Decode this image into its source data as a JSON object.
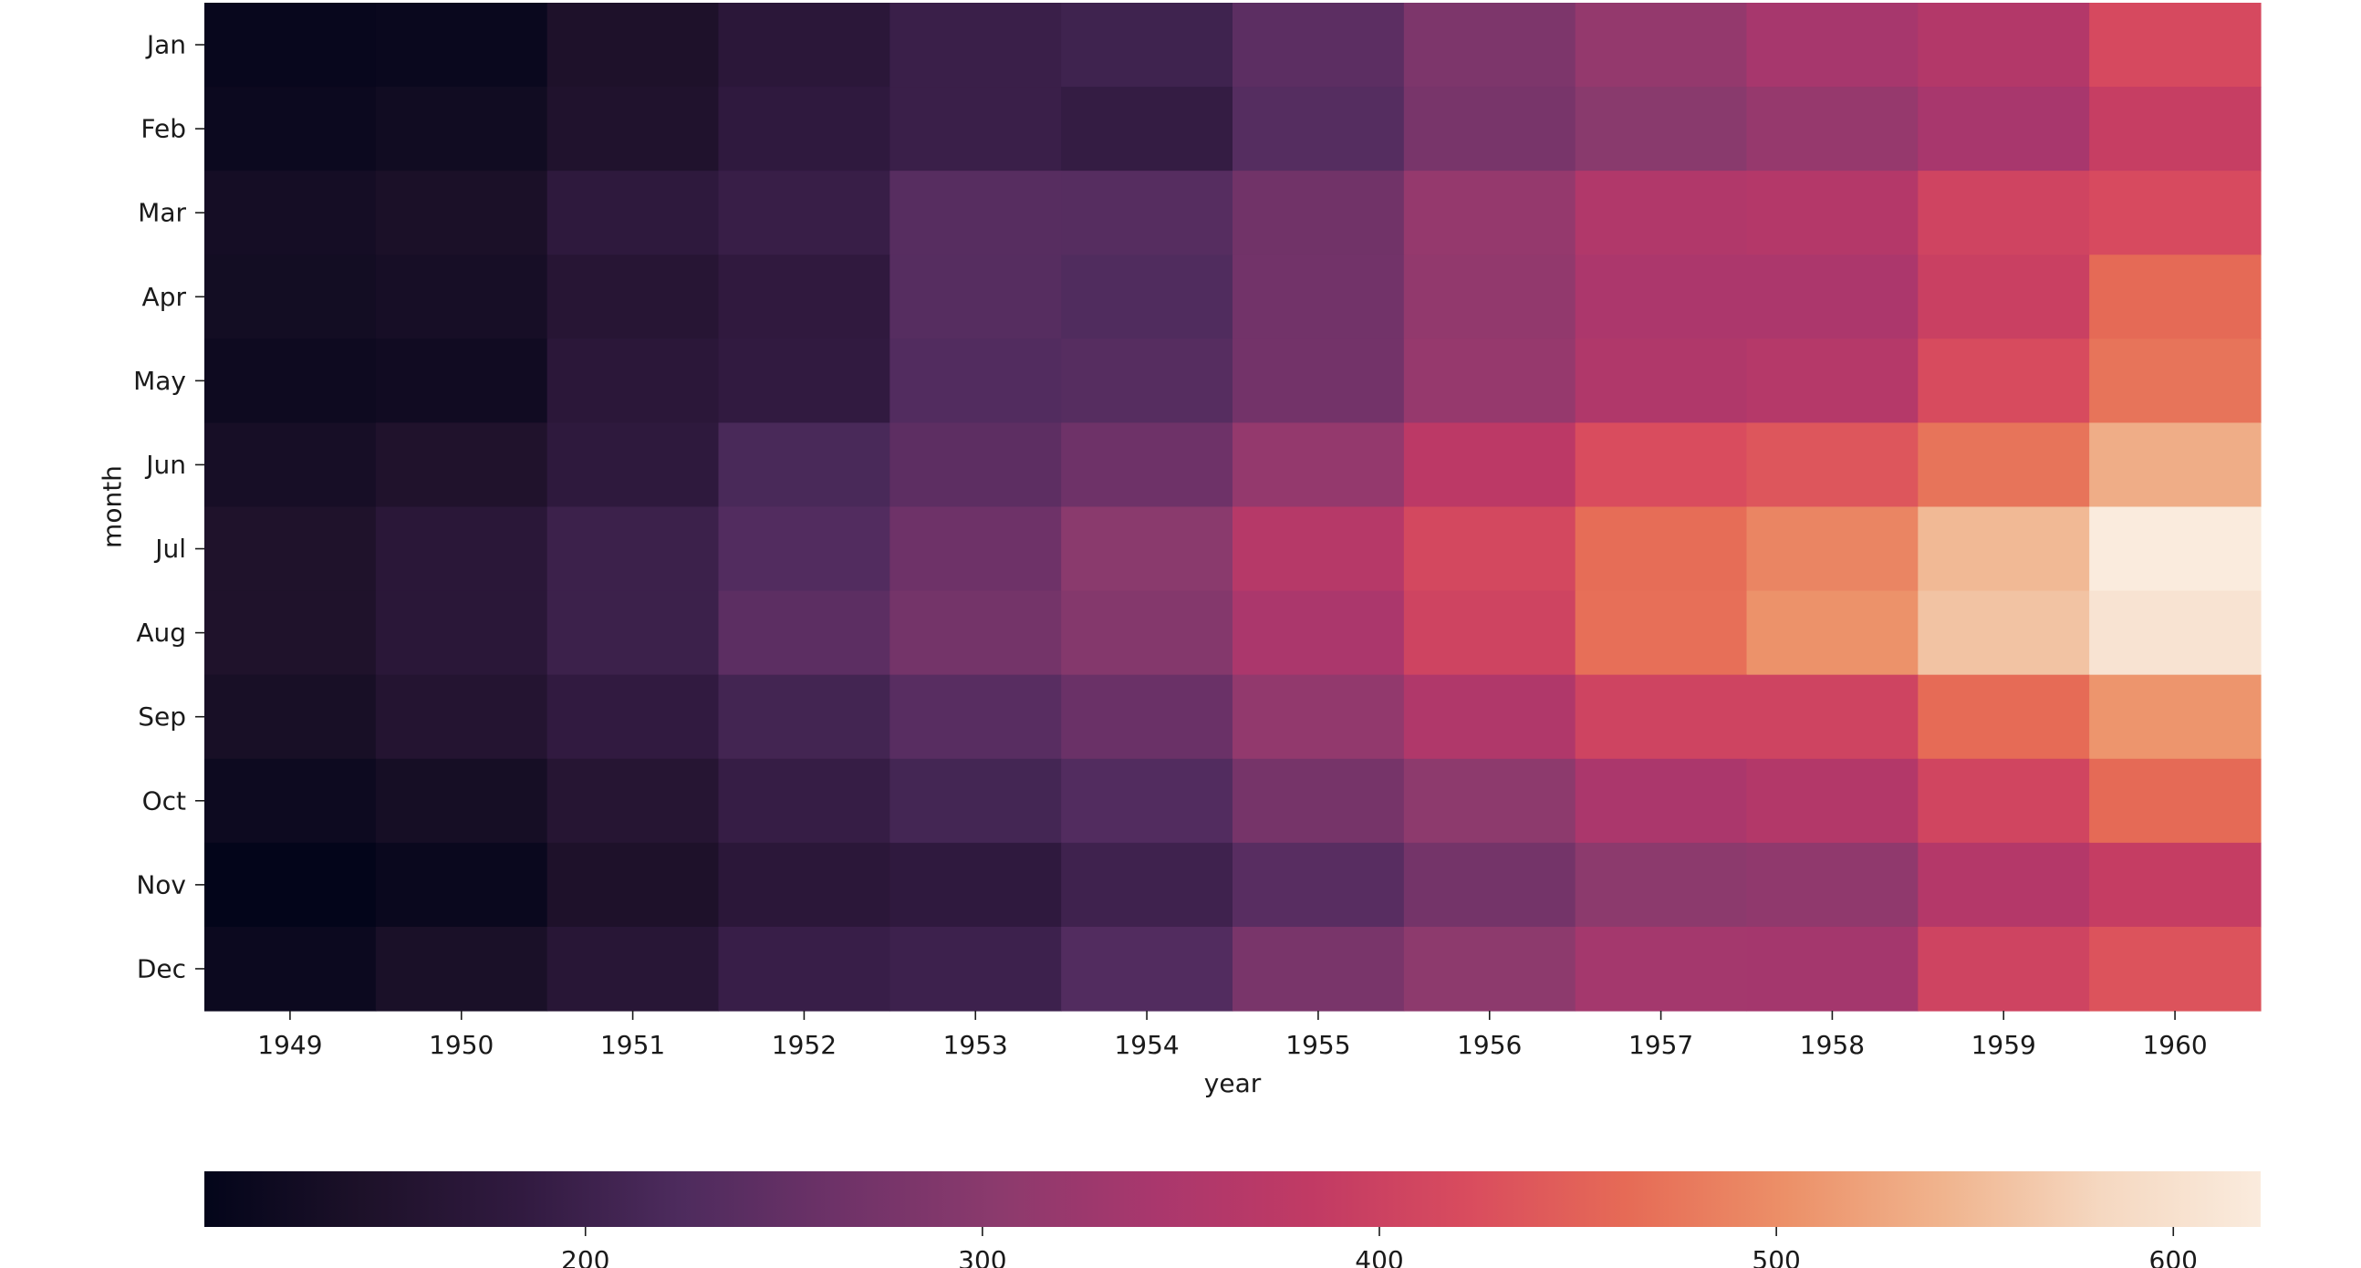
{
  "chart_data": {
    "type": "heatmap",
    "xlabel": "year",
    "ylabel": "month",
    "x": [
      "1949",
      "1950",
      "1951",
      "1952",
      "1953",
      "1954",
      "1955",
      "1956",
      "1957",
      "1958",
      "1959",
      "1960"
    ],
    "y": [
      "Jan",
      "Feb",
      "Mar",
      "Apr",
      "May",
      "Jun",
      "Jul",
      "Aug",
      "Sep",
      "Oct",
      "Nov",
      "Dec"
    ],
    "values": [
      [
        112,
        115,
        145,
        171,
        196,
        204,
        242,
        284,
        315,
        340,
        360,
        417
      ],
      [
        118,
        126,
        150,
        180,
        196,
        188,
        233,
        277,
        301,
        318,
        342,
        391
      ],
      [
        132,
        141,
        178,
        193,
        236,
        235,
        267,
        317,
        356,
        362,
        406,
        419
      ],
      [
        129,
        135,
        163,
        181,
        235,
        227,
        269,
        313,
        348,
        348,
        396,
        461
      ],
      [
        121,
        125,
        172,
        183,
        229,
        234,
        270,
        318,
        355,
        363,
        420,
        472
      ],
      [
        135,
        149,
        178,
        218,
        243,
        264,
        315,
        374,
        422,
        435,
        472,
        535
      ],
      [
        148,
        170,
        199,
        230,
        264,
        302,
        364,
        413,
        465,
        491,
        548,
        622
      ],
      [
        148,
        170,
        199,
        242,
        272,
        293,
        347,
        405,
        467,
        505,
        559,
        606
      ],
      [
        136,
        158,
        184,
        209,
        237,
        259,
        312,
        355,
        404,
        404,
        463,
        508
      ],
      [
        119,
        133,
        162,
        191,
        211,
        229,
        274,
        306,
        347,
        359,
        407,
        461
      ],
      [
        104,
        114,
        146,
        172,
        180,
        203,
        237,
        271,
        305,
        310,
        362,
        390
      ],
      [
        118,
        140,
        166,
        194,
        201,
        229,
        278,
        306,
        336,
        337,
        405,
        432
      ]
    ],
    "colormap": "rocket",
    "colorbar": {
      "orientation": "horizontal",
      "position": "bottom",
      "range": [
        104,
        622
      ],
      "ticks": [
        200,
        300,
        400,
        500,
        600
      ],
      "tick_labels": [
        "200",
        "300",
        "400",
        "500",
        "600"
      ]
    },
    "colormap_stops": [
      "#03051a",
      "#1d1129",
      "#311a40",
      "#4d2b5d",
      "#6e3268",
      "#8b3a6d",
      "#a9376d",
      "#c13a64",
      "#d94c5e",
      "#e66b56",
      "#ec9068",
      "#f0b48e",
      "#f5d8c1",
      "#faebdd"
    ]
  }
}
